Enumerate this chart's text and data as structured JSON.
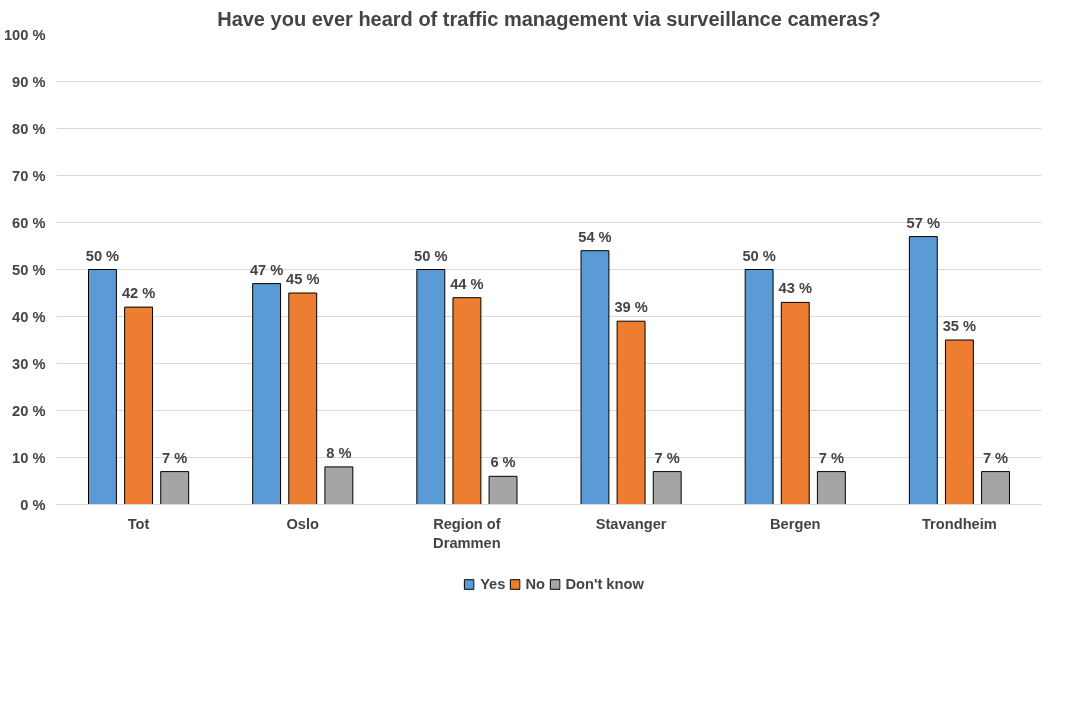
{
  "chart_data": {
    "type": "bar",
    "title": "Have you ever heard of traffic management via surveillance cameras?",
    "categories": [
      "Tot",
      "Oslo",
      "Region of Drammen",
      "Stavanger",
      "Bergen",
      "Trondheim"
    ],
    "series": [
      {
        "name": "Yes",
        "color": "#5b9bd5",
        "values": [
          50,
          47,
          50,
          54,
          50,
          57
        ],
        "value_labels": [
          "50 %",
          "47 %",
          "50 %",
          "54 %",
          "50 %",
          "57 %"
        ]
      },
      {
        "name": "No",
        "color": "#ed7d31",
        "values": [
          42,
          45,
          44,
          39,
          43,
          35
        ],
        "value_labels": [
          "42 %",
          "45 %",
          "44 %",
          "39 %",
          "43 %",
          "35 %"
        ]
      },
      {
        "name": "Don't know",
        "color": "#a5a5a5",
        "values": [
          7,
          8,
          6,
          7,
          7,
          7
        ],
        "value_labels": [
          "7 %",
          "8 %",
          "6 %",
          "7 %",
          "7 %",
          "7 %"
        ]
      }
    ],
    "ylim": [
      0,
      100
    ],
    "yticks": [
      {
        "value": 0,
        "label": "0 %"
      },
      {
        "value": 10,
        "label": "10 %"
      },
      {
        "value": 20,
        "label": "20 %"
      },
      {
        "value": 30,
        "label": "30 %"
      },
      {
        "value": 40,
        "label": "40 %"
      },
      {
        "value": 50,
        "label": "50 %"
      },
      {
        "value": 60,
        "label": "60 %"
      },
      {
        "value": 70,
        "label": "70 %"
      },
      {
        "value": 80,
        "label": "80 %"
      },
      {
        "value": 90,
        "label": "90 %"
      },
      {
        "value": 100,
        "label": "100 %"
      }
    ],
    "grid": "y",
    "legend": "bottom"
  }
}
